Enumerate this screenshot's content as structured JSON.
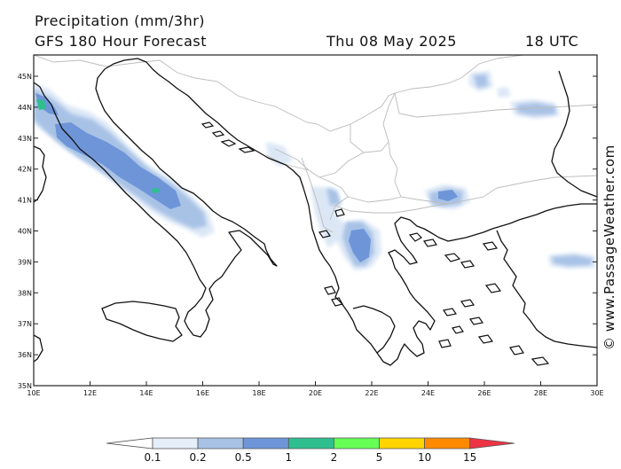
{
  "header": {
    "title": "Precipitation (mm/3hr)",
    "subtitle": "GFS 180 Hour Forecast",
    "date": "Thu 08 May 2025",
    "time": "18 UTC"
  },
  "credit": "© www.PassageWeather.com",
  "axes": {
    "lat_labels": [
      "45N",
      "44N",
      "43N",
      "42N",
      "41N",
      "40N",
      "39N",
      "38N",
      "37N",
      "36N",
      "35N"
    ],
    "lon_labels": [
      "10E",
      "12E",
      "14E",
      "16E",
      "18E",
      "20E",
      "22E",
      "24E",
      "26E",
      "28E",
      "30E"
    ]
  },
  "legend": {
    "labels": [
      "0.1",
      "0.2",
      "0.5",
      "1",
      "2",
      "5",
      "10",
      "15"
    ],
    "colors": [
      "#ffffff",
      "#e6eef9",
      "#a8c2e6",
      "#6e95d8",
      "#2fbf8f",
      "#66ff55",
      "#ffd400",
      "#ff8a00",
      "#ee3344"
    ]
  },
  "precip_colors": {
    "light": "#dce7f6",
    "medium": "#a8c2e6",
    "heavy": "#6e95d8",
    "green": "#2fbf8f"
  }
}
